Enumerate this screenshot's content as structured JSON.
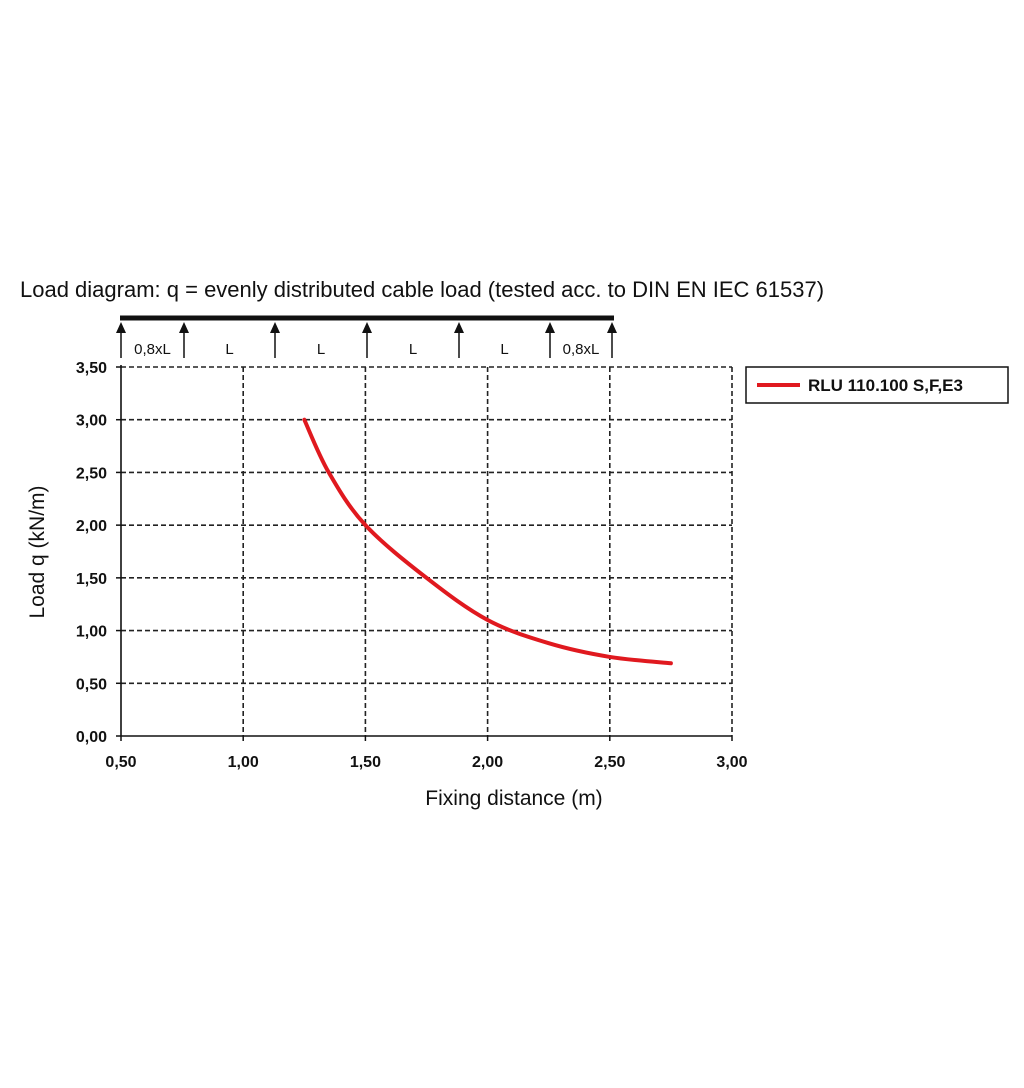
{
  "chart_data": {
    "type": "line",
    "title": "Load diagram: q = evenly distributed cable load (tested acc. to DIN EN IEC 61537)",
    "xlabel": "Fixing distance (m)",
    "ylabel": "Load q (kN/m)",
    "xlim": [
      0.5,
      3.0
    ],
    "ylim": [
      0.0,
      3.5
    ],
    "x_ticks": [
      "0,50",
      "1,00",
      "1,50",
      "2,00",
      "2,50",
      "3,00"
    ],
    "y_ticks": [
      "0,00",
      "0,50",
      "1,00",
      "1,50",
      "2,00",
      "2,50",
      "3,00",
      "3,50"
    ],
    "grid": true,
    "legend_position": "top-right-outside",
    "series": [
      {
        "name": "RLU 110.100 S,F,E3",
        "color": "#e0191f",
        "x": [
          1.25,
          1.35,
          1.5,
          1.75,
          2.0,
          2.25,
          2.5,
          2.75
        ],
        "y": [
          3.0,
          2.5,
          2.0,
          1.5,
          1.1,
          0.88,
          0.75,
          0.69
        ]
      }
    ],
    "span_labels": [
      "0,8xL",
      "L",
      "L",
      "L",
      "L",
      "0,8xL"
    ]
  }
}
